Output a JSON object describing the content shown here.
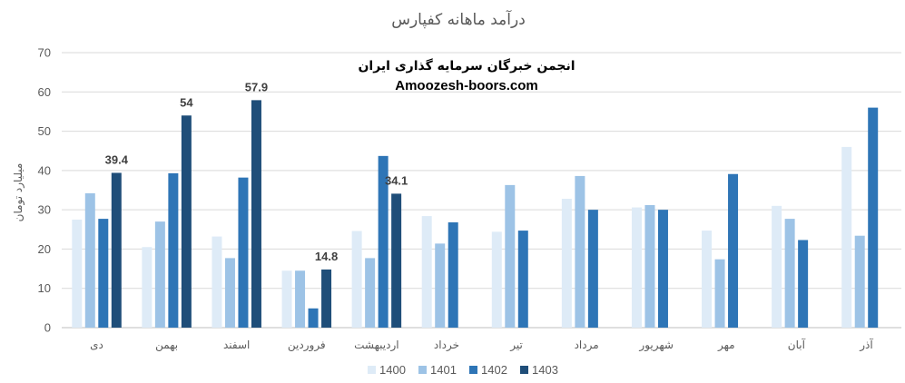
{
  "chart_data": {
    "type": "bar",
    "title": "درآمد ماهانه کفپارس",
    "ylabel": "میلیارد تومان",
    "watermark_line1": "انجمن خبرگان سرمایه گذاری ایران",
    "watermark_line2": "Amoozesh-boors.com",
    "ylim": [
      0,
      70
    ],
    "yticks": [
      0,
      10,
      20,
      30,
      40,
      50,
      60,
      70
    ],
    "categories": [
      "دی",
      "بهمن",
      "اسفند",
      "فروردین",
      "اردیبهشت",
      "خرداد",
      "تیر",
      "مرداد",
      "شهریور",
      "مهر",
      "آبان",
      "آذر"
    ],
    "series": [
      {
        "name": "1400",
        "color": "#deebf7",
        "values": [
          27.5,
          20.5,
          23.2,
          14.5,
          24.6,
          28.4,
          24.4,
          32.8,
          30.6,
          24.7,
          31.0,
          46.0
        ]
      },
      {
        "name": "1401",
        "color": "#9dc3e6",
        "values": [
          34.2,
          27.0,
          17.7,
          14.5,
          17.7,
          21.4,
          36.3,
          38.6,
          31.2,
          17.4,
          27.7,
          23.4
        ]
      },
      {
        "name": "1402",
        "color": "#2e75b6",
        "values": [
          27.7,
          39.3,
          38.2,
          4.9,
          43.7,
          26.8,
          24.7,
          30.0,
          30.0,
          39.1,
          22.3,
          56.0
        ]
      },
      {
        "name": "1403",
        "color": "#1f4e79",
        "values": [
          39.4,
          54,
          57.9,
          14.8,
          34.1,
          null,
          null,
          null,
          null,
          null,
          null,
          null
        ]
      }
    ],
    "data_labels": [
      {
        "category_index": 0,
        "series_index": 3,
        "text": "39.4"
      },
      {
        "category_index": 1,
        "series_index": 3,
        "text": "54"
      },
      {
        "category_index": 2,
        "series_index": 3,
        "text": "57.9"
      },
      {
        "category_index": 3,
        "series_index": 3,
        "text": "14.8"
      },
      {
        "category_index": 4,
        "series_index": 3,
        "text": "34.1"
      }
    ],
    "grid": true,
    "legend_position": "bottom"
  }
}
